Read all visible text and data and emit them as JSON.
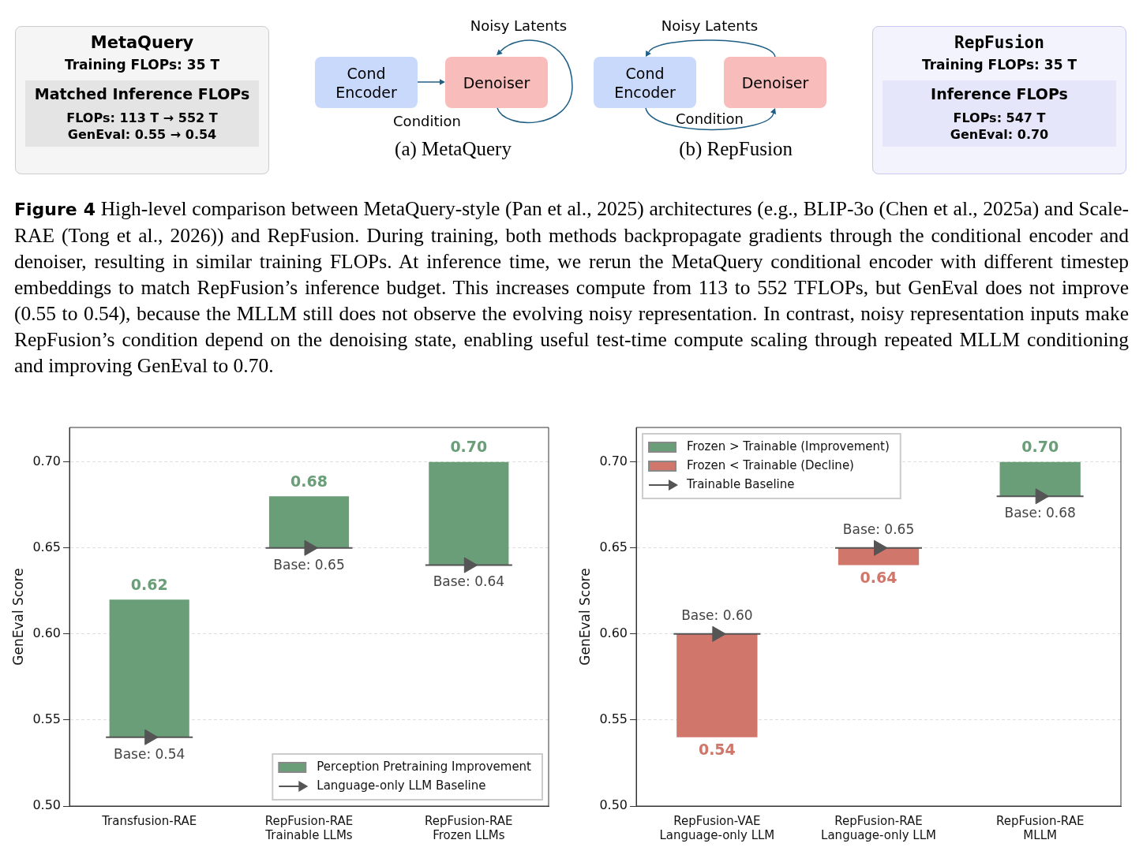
{
  "chart_data": [
    {
      "type": "other",
      "title": "MetaQuery",
      "annotations": [
        "Training  FLOPs:  35 T",
        "Matched  Inference  FLOPs",
        "FLOPs:  113 T → 552 T",
        "GenEval:  0.55 → 0.54"
      ]
    },
    {
      "type": "other",
      "title": "(a) MetaQuery",
      "annotations": [
        "Noisy Latents",
        "Cond\nEncoder",
        "Denoiser",
        "Condition"
      ]
    },
    {
      "type": "other",
      "title": "(b) RepFusion",
      "annotations": [
        "Noisy Latents",
        "Cond\nEncoder",
        "Denoiser",
        "Condition"
      ]
    },
    {
      "type": "other",
      "title": "RepFusion",
      "annotations": [
        "Training  FLOPs:  35 T",
        "Inference  FLOPs",
        "FLOPs:  547 T",
        "GenEval:  0.70"
      ]
    },
    {
      "type": "other",
      "title": "Figure 4",
      "annotations": [
        "High-level comparison between MetaQuery-style (Pan et al., 2025) architectures (e.g., BLIP-3o (Chen et al., 2025a) and Scale-RAE (Tong et al., 2026)) and RepFusion. During training, both methods backpropagate gradients through the conditional encoder and denoiser, resulting in similar training FLOPs. At inference time, we rerun the MetaQuery conditional encoder with different timestep embeddings to match RepFusion’s inference budget. This increases compute from 113 to 552 TFLOPs, but GenEval does not improve (0.55 to 0.54), because the MLLM still does not observe the evolving noisy representation. In contrast, noisy representation inputs make RepFusion’s condition depend on the denoising state, enabling useful test-time compute scaling through repeated MLLM conditioning and improving GenEval to 0.70."
      ]
    },
    {
      "type": "bar",
      "ylabel": "GenEval Score",
      "categories": [
        "Transfusion-RAE",
        "RepFusion-RAE\nTrainable LLMs",
        "RepFusion-RAE\nFrozen LLMs"
      ],
      "series": [
        {
          "name": "Perception Pretraining Improvement",
          "color": "#6a9e78",
          "base": [
            0.54,
            0.65,
            0.64
          ],
          "values": [
            0.08,
            0.03,
            0.06
          ],
          "value_labels": [
            "0.62",
            "0.68",
            "0.70"
          ]
        },
        {
          "name": "Language-only LLM Baseline",
          "type": "scatter",
          "marker": "triangle",
          "color": "#555555",
          "x": [
            "Transfusion-RAE",
            "RepFusion-RAE\nTrainable LLMs",
            "RepFusion-RAE\nFrozen LLMs"
          ],
          "values": [
            0.54,
            0.65,
            0.64
          ]
        }
      ],
      "annotations": [
        {
          "text": "Base: 0.54",
          "x": "Transfusion-RAE",
          "y": 0.54
        },
        {
          "text": "Base: 0.65",
          "x": "RepFusion-RAE\nTrainable LLMs",
          "y": 0.65
        },
        {
          "text": "Base: 0.64",
          "x": "RepFusion-RAE\nFrozen LLMs",
          "y": 0.64
        }
      ],
      "ylim": [
        0.5,
        0.72
      ],
      "yticks": [
        {
          "value": 0.5,
          "label": "0.50"
        },
        {
          "value": 0.55,
          "label": "0.55"
        },
        {
          "value": 0.6,
          "label": "0.60"
        },
        {
          "value": 0.65,
          "label": "0.65"
        },
        {
          "value": 0.7,
          "label": "0.70"
        }
      ],
      "grid": "y",
      "legend": "bottom right"
    },
    {
      "type": "bar",
      "ylabel": "GenEval Score",
      "categories": [
        "RepFusion-VAE\nLanguage-only LLM",
        "RepFusion-RAE\nLanguage-only LLM",
        "RepFusion-RAE\nMLLM"
      ],
      "series": [
        {
          "name": "Frozen > Trainable (Improvement)",
          "color": "#6a9e78",
          "base": [
            null,
            null,
            0.68
          ],
          "values": [
            null,
            null,
            0.02
          ],
          "value_labels": [
            null,
            null,
            "0.70"
          ]
        },
        {
          "name": "Frozen < Trainable (Decline)",
          "color": "#d0766a",
          "base": [
            0.6,
            0.65,
            null
          ],
          "values": [
            -0.06,
            -0.01,
            null
          ],
          "value_labels": [
            "0.54",
            "0.64",
            null
          ]
        },
        {
          "name": "Trainable Baseline",
          "type": "scatter",
          "marker": "triangle",
          "color": "#555555",
          "x": [
            "RepFusion-VAE\nLanguage-only LLM",
            "RepFusion-RAE\nLanguage-only LLM",
            "RepFusion-RAE\nMLLM"
          ],
          "values": [
            0.6,
            0.65,
            0.68
          ]
        }
      ],
      "annotations": [
        {
          "text": "Base: 0.60",
          "x": "RepFusion-VAE\nLanguage-only LLM",
          "y": 0.6
        },
        {
          "text": "Base: 0.65",
          "x": "RepFusion-RAE\nLanguage-only LLM",
          "y": 0.65
        },
        {
          "text": "Base: 0.68",
          "x": "RepFusion-RAE\nMLLM",
          "y": 0.68
        }
      ],
      "ylim": [
        0.5,
        0.72
      ],
      "yticks": [
        {
          "value": 0.5,
          "label": "0.50"
        },
        {
          "value": 0.55,
          "label": "0.55"
        },
        {
          "value": 0.6,
          "label": "0.60"
        },
        {
          "value": 0.65,
          "label": "0.65"
        },
        {
          "value": 0.7,
          "label": "0.70"
        }
      ],
      "grid": "y",
      "legend": "top left"
    }
  ]
}
